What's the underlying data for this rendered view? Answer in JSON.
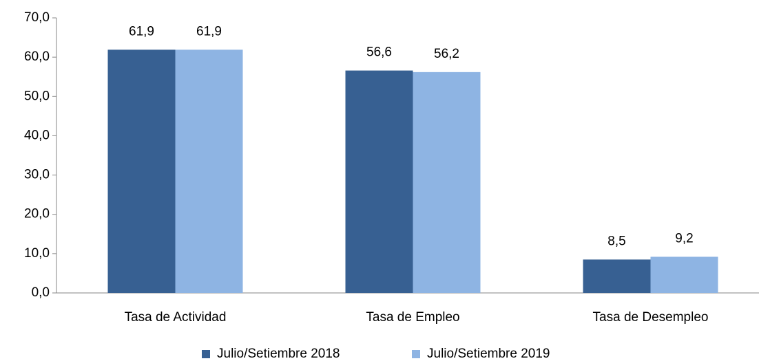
{
  "chart_data": {
    "type": "bar",
    "categories": [
      "Tasa de Actividad",
      "Tasa de Empleo",
      "Tasa de Desempleo"
    ],
    "series": [
      {
        "name": "Julio/Setiembre 2018",
        "color": "#376092",
        "values": [
          61.9,
          56.6,
          8.5
        ],
        "value_labels": [
          "61,9",
          "56,6",
          "8,5"
        ]
      },
      {
        "name": "Julio/Setiembre 2019",
        "color": "#8eb4e3",
        "values": [
          61.9,
          56.2,
          9.2
        ],
        "value_labels": [
          "61,9",
          "56,2",
          "9,2"
        ]
      }
    ],
    "ylim": [
      0,
      70
    ],
    "yticks": [
      {
        "value": 0,
        "label": "0,0"
      },
      {
        "value": 10,
        "label": "10,0"
      },
      {
        "value": 20,
        "label": "20,0"
      },
      {
        "value": 30,
        "label": "30,0"
      },
      {
        "value": 40,
        "label": "40,0"
      },
      {
        "value": 50,
        "label": "50,0"
      },
      {
        "value": 60,
        "label": "60,0"
      },
      {
        "value": 70,
        "label": "70,0"
      }
    ],
    "grid": false,
    "legend": "bottom"
  }
}
